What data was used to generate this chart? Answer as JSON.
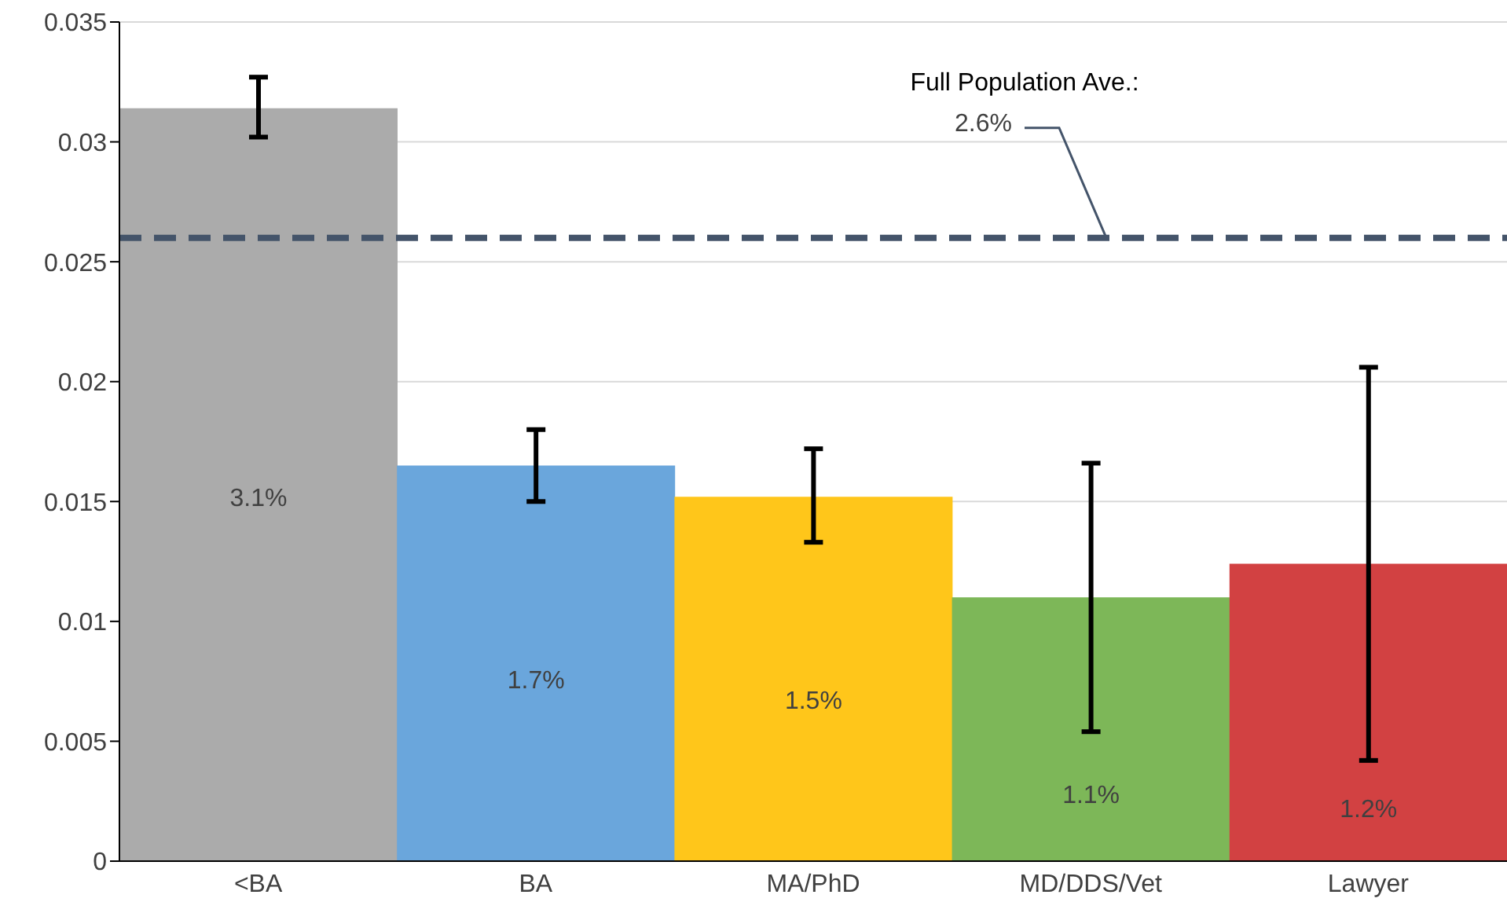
{
  "chart_data": {
    "type": "bar",
    "categories": [
      "<BA",
      "BA",
      "MA/PhD",
      "MD/DDS/Vet",
      "Lawyer"
    ],
    "values": [
      0.0314,
      0.0165,
      0.0152,
      0.011,
      0.0124
    ],
    "colors": [
      "#ababab",
      "#6aa6dc",
      "#ffc61a",
      "#7db758",
      "#d24142"
    ],
    "value_labels": [
      "3.1%",
      "1.7%",
      "1.5%",
      "1.1%",
      "1.2%"
    ],
    "errors": [
      [
        0.0302,
        0.0327
      ],
      [
        0.015,
        0.018
      ],
      [
        0.0133,
        0.0172
      ],
      [
        0.0054,
        0.0166
      ],
      [
        0.0042,
        0.0206
      ]
    ],
    "ylim": [
      0,
      0.035
    ],
    "yticks": [
      0,
      0.005,
      0.01,
      0.015,
      0.02,
      0.025,
      0.03,
      0.035
    ],
    "grid": "y",
    "ref_lines": [
      {
        "axis": "y",
        "value": 0.026,
        "label": "Full Population Ave.:\n2.6%",
        "color": "#44546a",
        "line_style": "dashed"
      }
    ]
  }
}
